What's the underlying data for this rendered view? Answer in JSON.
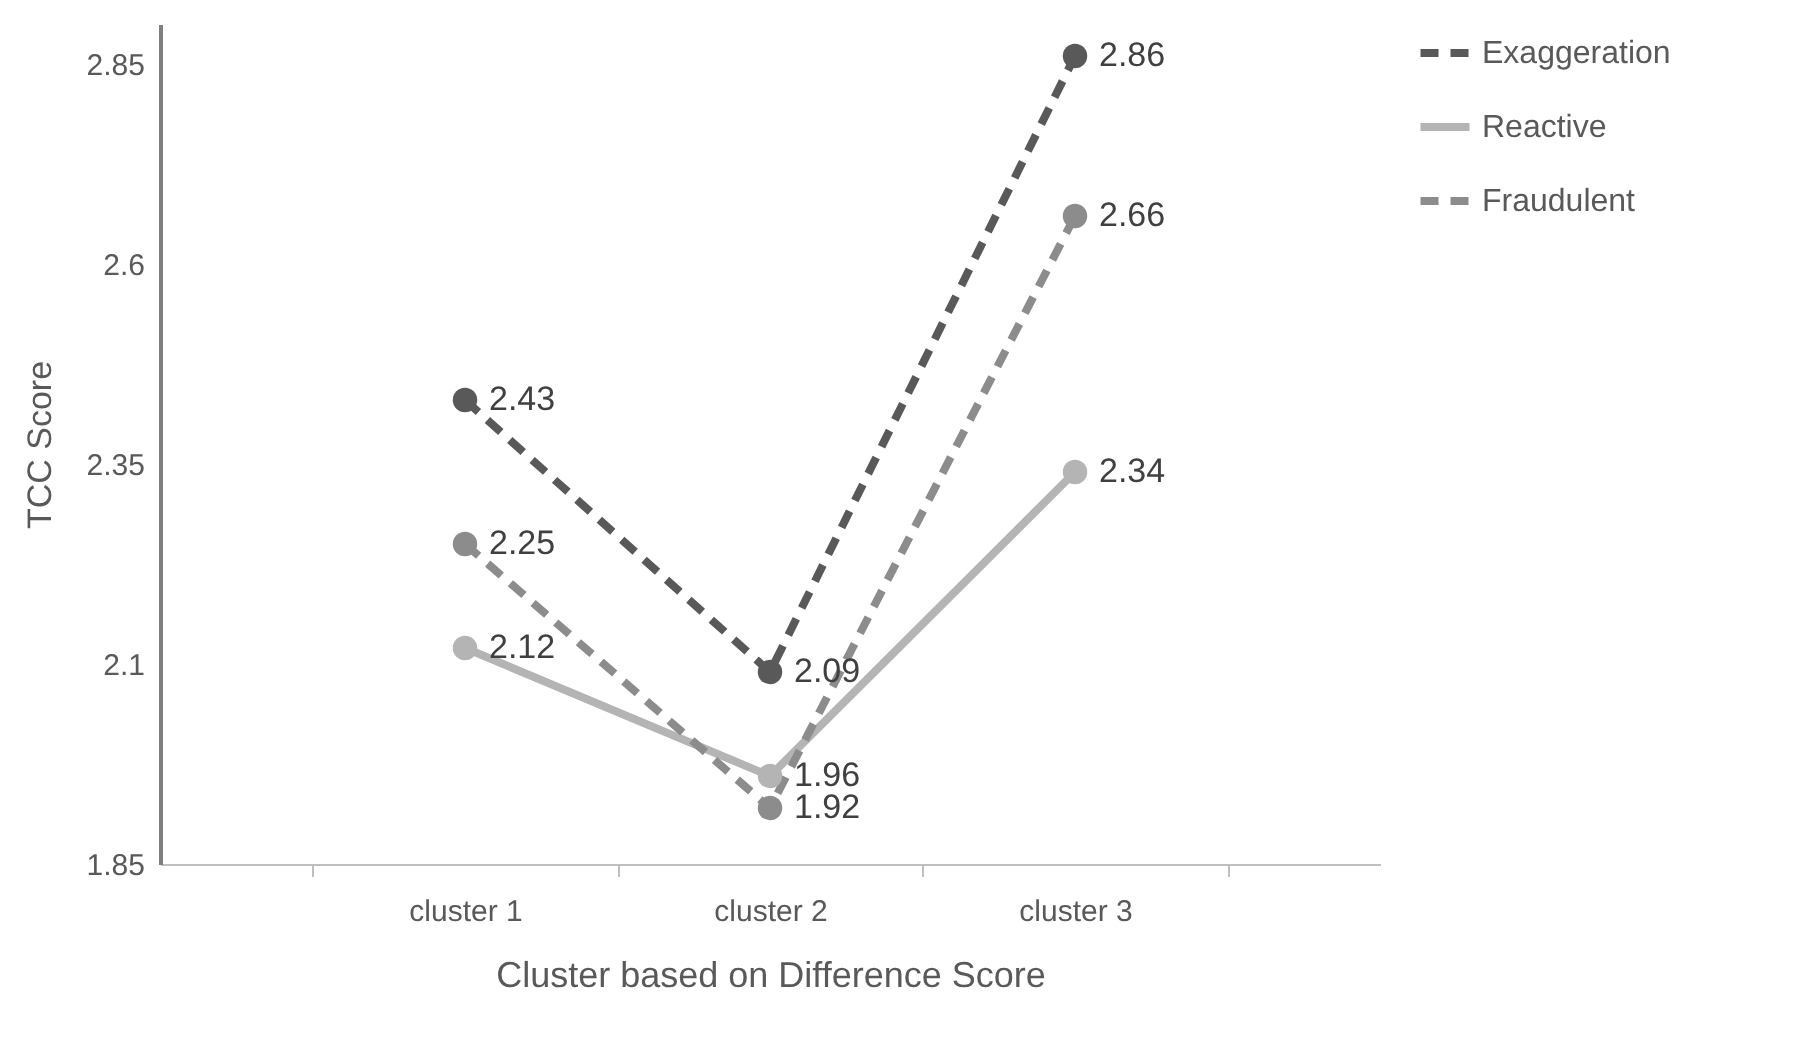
{
  "chart_data": {
    "type": "line",
    "xlabel": "Cluster based on Difference Score",
    "ylabel": "TCC Score",
    "categories": [
      "cluster 1",
      "cluster 2",
      "cluster 3"
    ],
    "series": [
      {
        "name": "Exaggeration",
        "color": "#595959",
        "line_style": "dashed",
        "values": [
          2.43,
          2.09,
          2.86
        ]
      },
      {
        "name": "Reactive",
        "color": "#b4b4b4",
        "line_style": "solid",
        "values": [
          2.12,
          1.96,
          2.34
        ]
      },
      {
        "name": "Fraudulent",
        "color": "#8c8c8c",
        "line_style": "dashed",
        "values": [
          2.25,
          1.92,
          2.66
        ]
      }
    ],
    "ylim": [
      1.85,
      2.9
    ],
    "yticks": [
      1.85,
      2.1,
      2.35,
      2.6,
      2.85
    ],
    "grid": false,
    "legend": "right",
    "marker": "circle",
    "data_labels": true
  }
}
